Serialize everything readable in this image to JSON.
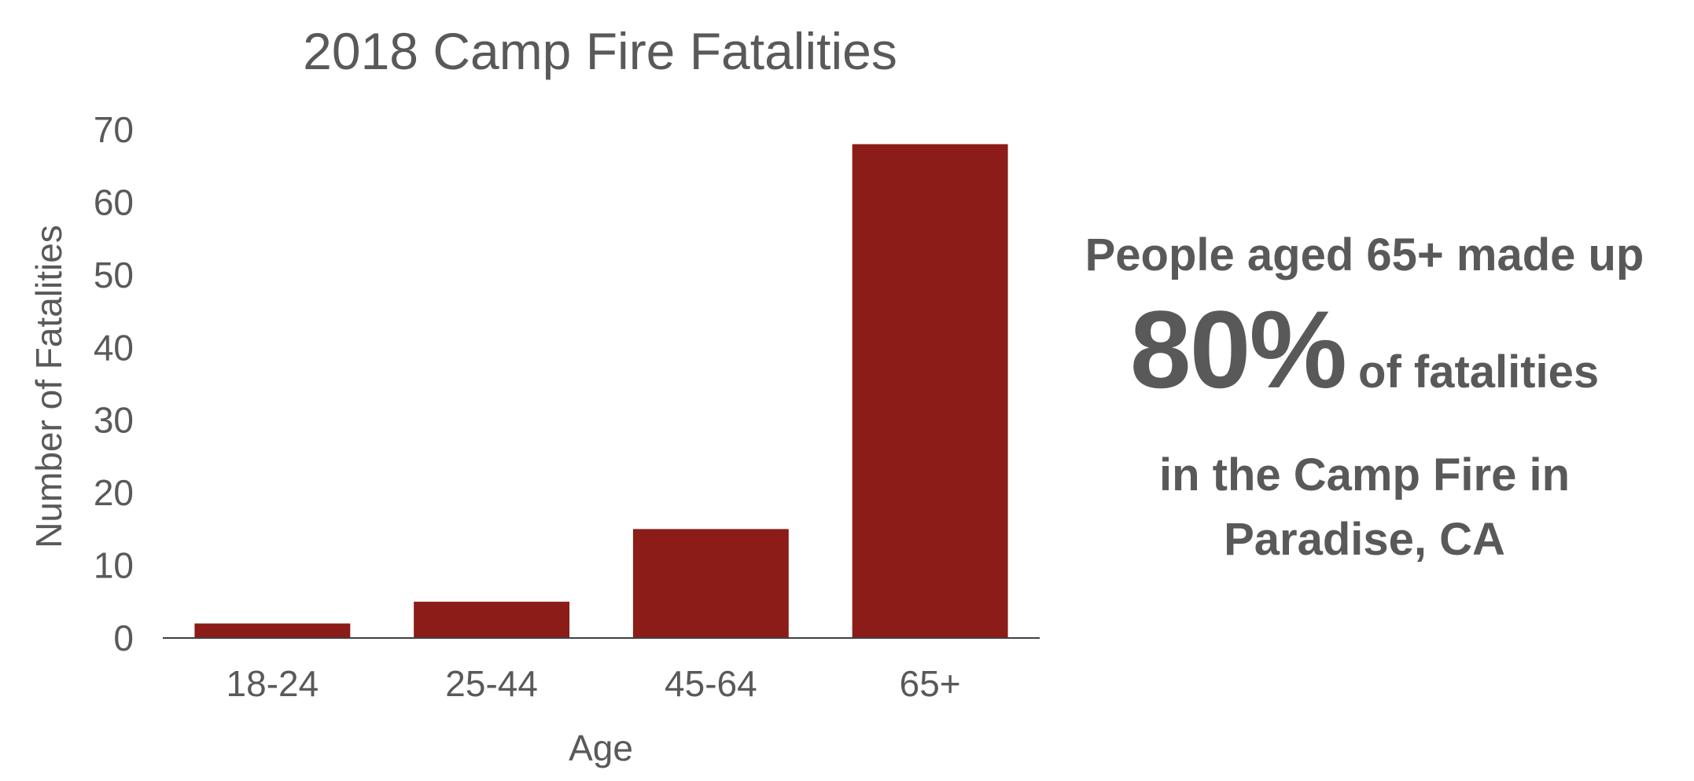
{
  "chart_data": {
    "type": "bar",
    "title": "2018 Camp Fire Fatalities",
    "xlabel": "Age",
    "ylabel": "Number of Fatalities",
    "categories": [
      "18-24",
      "25-44",
      "45-64",
      "65+"
    ],
    "values": [
      2,
      5,
      15,
      68
    ],
    "ylim": [
      0,
      70
    ],
    "yticks": [
      "0",
      "10",
      "20",
      "30",
      "40",
      "50",
      "60",
      "70"
    ],
    "grid": false,
    "bar_color": "#8B1C17",
    "text_color": "#595959"
  },
  "callout": {
    "line1": "People aged 65+ made up",
    "percent": "80%",
    "line2_rest": "of fatalities",
    "line3": "in the Camp Fire in",
    "line4": "Paradise, CA"
  }
}
